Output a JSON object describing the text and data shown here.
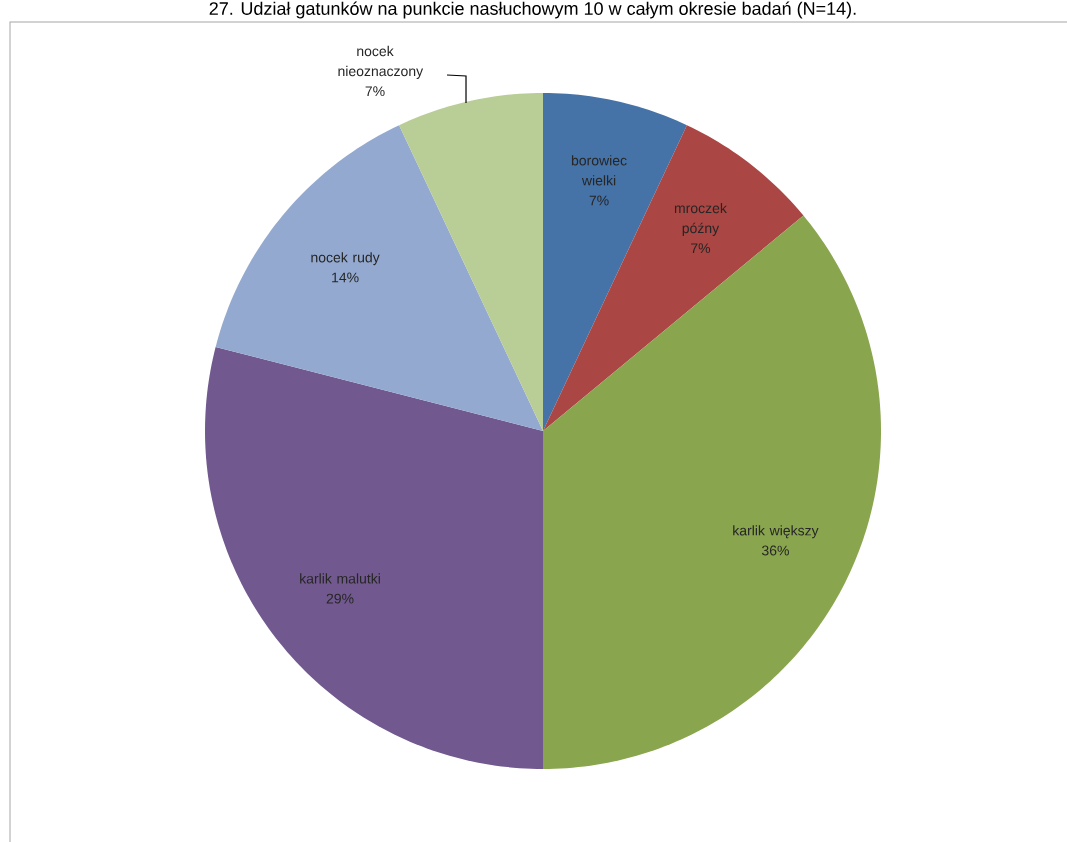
{
  "chart_data": {
    "type": "pie",
    "title": "27. Udział gatunków na punkcie nasłuchowym 10 w całym okresie badań (N=14).",
    "categories": [
      "borowiec wielki",
      "mroczek późny",
      "karlik większy",
      "karlik malutki",
      "nocek rudy",
      "nocek nieoznaczony"
    ],
    "values": [
      7,
      7,
      36,
      29,
      14,
      7
    ],
    "colors": [
      "#4572a7",
      "#aa4643",
      "#89a54e",
      "#71588f",
      "#93a9cf",
      "#b9cd96"
    ],
    "value_labels": [
      "7%",
      "7%",
      "36%",
      "29%",
      "14%",
      "7%"
    ]
  }
}
